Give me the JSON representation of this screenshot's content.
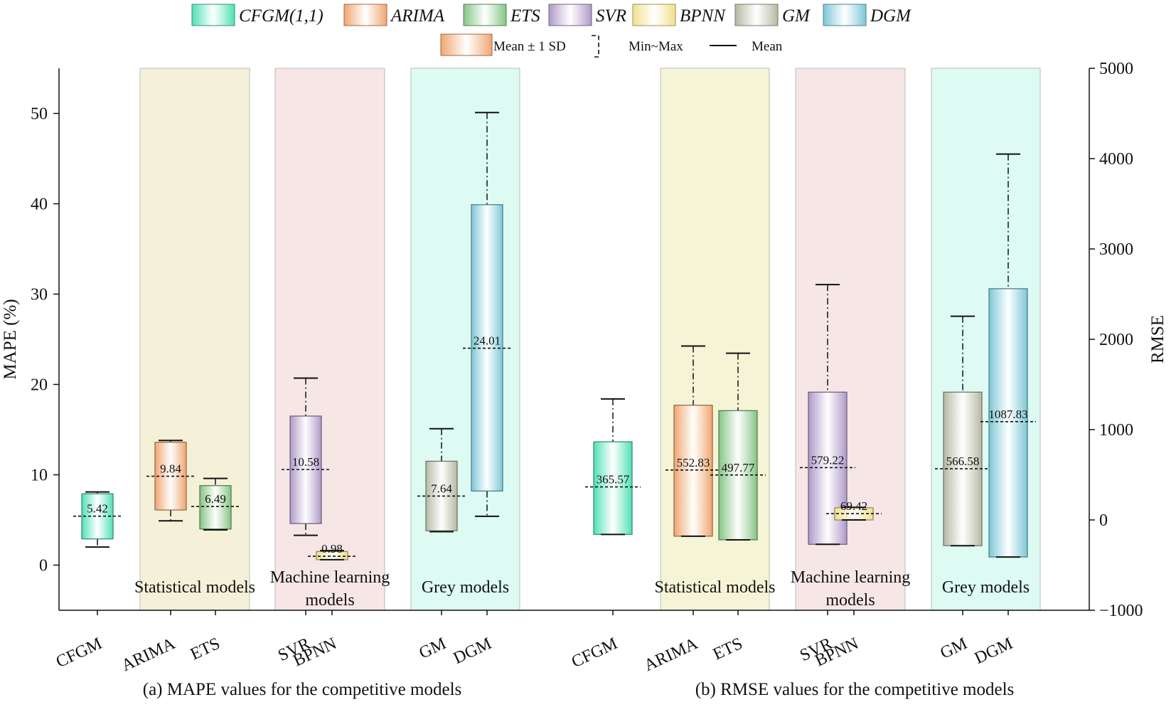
{
  "chart_data": [
    {
      "type": "box",
      "id": "mape",
      "caption": "(a) MAPE values for the competitive models",
      "ylabel": "MAPE (%)",
      "ylim": [
        -5,
        55
      ],
      "yticks": [
        0,
        10,
        20,
        30,
        40,
        50
      ],
      "categories": [
        "CFGM",
        "ARIMA",
        "ETS",
        "SVR",
        "BPNN",
        "GM",
        "DGM"
      ],
      "series": [
        {
          "name": "CFGM(1,1)",
          "min": 2.0,
          "low": 2.9,
          "high": 7.9,
          "max": 8.1,
          "mean": 5.42,
          "mean_label": "5.42"
        },
        {
          "name": "ARIMA",
          "min": 4.9,
          "low": 6.1,
          "high": 13.6,
          "max": 13.8,
          "mean": 9.84,
          "mean_label": "9.84"
        },
        {
          "name": "ETS",
          "min": 3.9,
          "low": 4.0,
          "high": 8.8,
          "max": 9.6,
          "mean": 6.49,
          "mean_label": "6.49"
        },
        {
          "name": "SVR",
          "min": 3.3,
          "low": 4.6,
          "high": 16.5,
          "max": 20.7,
          "mean": 10.58,
          "mean_label": "10.58"
        },
        {
          "name": "BPNN",
          "min": 0.6,
          "low": 0.6,
          "high": 1.5,
          "max": 1.6,
          "mean": 0.98,
          "mean_label": "0.98"
        },
        {
          "name": "GM",
          "min": 3.7,
          "low": 3.8,
          "high": 11.5,
          "max": 15.1,
          "mean": 7.64,
          "mean_label": "7.64"
        },
        {
          "name": "DGM",
          "min": 5.4,
          "low": 8.2,
          "high": 39.9,
          "max": 50.1,
          "mean": 24.01,
          "mean_label": "24.01"
        }
      ],
      "groups": [
        {
          "label1": "Statistical models",
          "label2": "",
          "color": "#f5f0d8"
        },
        {
          "label1": "Machine learning",
          "label2": "models",
          "color": "#f6e6e6"
        },
        {
          "label1": "Grey models",
          "label2": "",
          "color": "#ddfaf3"
        }
      ]
    },
    {
      "type": "box",
      "id": "rmse",
      "caption": "(b) RMSE values for the competitive models",
      "ylabel": "RMSE",
      "ylim": [
        -1000,
        5000
      ],
      "yticks": [
        -1000,
        0,
        1000,
        2000,
        3000,
        4000,
        5000
      ],
      "categories": [
        "CFGM",
        "ARIMA",
        "ETS",
        "SVR",
        "BPNN",
        "GM",
        "DGM"
      ],
      "series": [
        {
          "name": "CFGM(1,1)",
          "min": -160,
          "low": -160,
          "high": 865,
          "max": 1340,
          "mean": 365.57,
          "mean_label": "365.57"
        },
        {
          "name": "ARIMA",
          "min": -180,
          "low": -180,
          "high": 1270,
          "max": 1925,
          "mean": 552.83,
          "mean_label": "552.83"
        },
        {
          "name": "ETS",
          "min": -220,
          "low": -220,
          "high": 1210,
          "max": 1845,
          "mean": 497.77,
          "mean_label": "497.77"
        },
        {
          "name": "SVR",
          "min": -270,
          "low": -270,
          "high": 1415,
          "max": 2605,
          "mean": 579.22,
          "mean_label": "579.22"
        },
        {
          "name": "BPNN",
          "min": 0,
          "low": 0,
          "high": 135,
          "max": 140,
          "mean": 69.42,
          "mean_label": "69.42"
        },
        {
          "name": "GM",
          "min": -285,
          "low": -285,
          "high": 1415,
          "max": 2255,
          "mean": 566.58,
          "mean_label": "566.58"
        },
        {
          "name": "DGM",
          "min": -410,
          "low": -410,
          "high": 2560,
          "max": 4050,
          "mean": 1087.83,
          "mean_label": "1087.83"
        }
      ],
      "groups": [
        {
          "label1": "Statistical models",
          "label2": "",
          "color": "#f5f4d6"
        },
        {
          "label1": "Machine learning",
          "label2": "models",
          "color": "#f6e6e6"
        },
        {
          "label1": "Grey models",
          "label2": "",
          "color": "#ddfaf3"
        }
      ]
    }
  ],
  "legend": {
    "models": [
      {
        "name": "CFGM(1,1)",
        "color": "#4fe0b4"
      },
      {
        "name": "ARIMA",
        "color": "#f0a570"
      },
      {
        "name": "ETS",
        "color": "#84c484"
      },
      {
        "name": "SVR",
        "color": "#ae98c8"
      },
      {
        "name": "BPNN",
        "color": "#f0e08a"
      },
      {
        "name": "GM",
        "color": "#b6b8a2"
      },
      {
        "name": "DGM",
        "color": "#7cc6d6"
      }
    ],
    "sd_label": "Mean ± 1 SD",
    "minmax_label": "Min~Max",
    "mean_label": "Mean"
  }
}
